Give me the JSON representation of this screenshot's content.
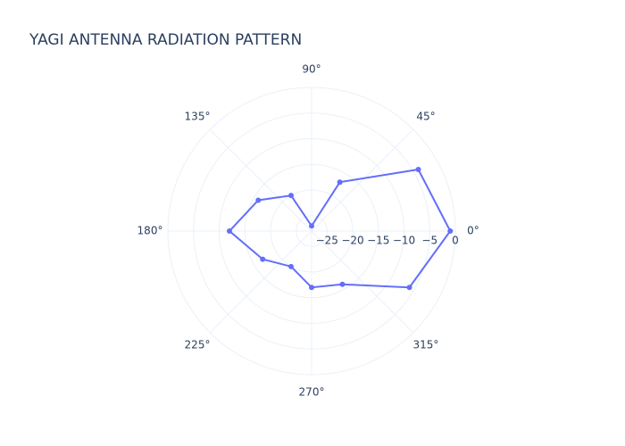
{
  "chart_data": {
    "type": "polar",
    "title": "YAGI ANTENNA RADIATION PATTERN",
    "theta": [
      0,
      30,
      60,
      90,
      120,
      150,
      180,
      210,
      240,
      270,
      300,
      330
    ],
    "series": [
      {
        "color": "#636efa",
        "values": [
          -1,
          -4,
          -17,
          -27,
          -20,
          -16,
          -12,
          -17,
          -20,
          -17,
          -16,
          -6
        ]
      }
    ],
    "rlim": [
      -28,
      0
    ],
    "rticks": [
      {
        "value": -25,
        "label": "−25"
      },
      {
        "value": -20,
        "label": "−20"
      },
      {
        "value": -15,
        "label": "−15"
      },
      {
        "value": -10,
        "label": "−10"
      },
      {
        "value": -5,
        "label": "−5"
      },
      0
    ],
    "thetaticks": [
      {
        "value": 0,
        "label": "0°"
      },
      {
        "value": 45,
        "label": "45°"
      },
      {
        "value": 90,
        "label": "90°"
      },
      {
        "value": 135,
        "label": "135°"
      },
      {
        "value": 180,
        "label": "180°"
      },
      {
        "value": 225,
        "label": "225°"
      },
      {
        "value": 270,
        "label": "270°"
      },
      {
        "value": 315,
        "label": "315°"
      }
    ],
    "grid": true
  }
}
